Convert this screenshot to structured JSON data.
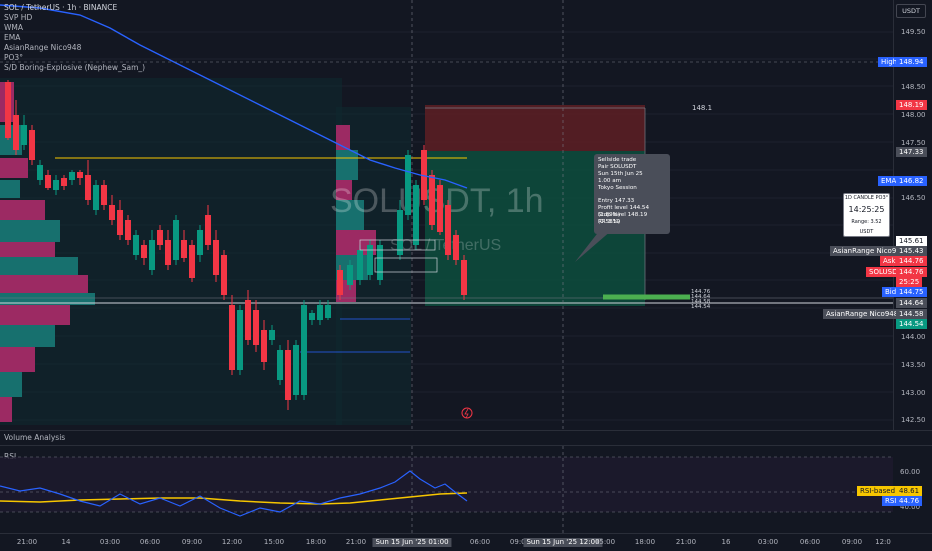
{
  "header": {
    "symbol_line": "SOL / TetherUS · 1h · BINANCE",
    "indicators": [
      "SVP HD",
      "WMA",
      "EMA",
      "AsianRange Nico948",
      "PO3°",
      "S/D Boring-Explosive (Nephew_Sam_)"
    ],
    "currency_button": "USDT"
  },
  "watermark": {
    "main": "SOLUSDT, 1h",
    "sub": "SOL / TetherUS"
  },
  "trade_box": {
    "top_value": "148.1",
    "lines": [
      "Sellside trade",
      "Pair SOLUSDT",
      "Sun 15th Jun 25",
      "1.00 am",
      "Tokyo Session",
      "",
      "Entry 147.33",
      "Profit level 144.54 (1.89%)",
      "Stop level 148.19 (0.58%)",
      "RR 3.19"
    ]
  },
  "po3_box": {
    "title": "1D CANDLE PO3°",
    "timer": "14:25:25",
    "range": "Range: 3.52 USDT"
  },
  "price_axis": {
    "ticks": [
      "149.50",
      "149.00",
      "148.50",
      "148.00",
      "147.50",
      "147.00",
      "146.50",
      "146.00",
      "145.50",
      "145.00",
      "144.50",
      "144.00",
      "143.50",
      "143.00",
      "142.50"
    ],
    "high_label": "High",
    "high_value": "148.94",
    "labels": [
      {
        "text": "148.19",
        "color": "#f23645"
      },
      {
        "text": "147.33",
        "color": "#4a4e59"
      },
      {
        "text": "EMA",
        "color": "#2962ff"
      },
      {
        "text": "146.82",
        "color": "#2962ff"
      },
      {
        "text": "145.61",
        "color": "#ffffff"
      },
      {
        "text": "AsianRange Nico948:Up",
        "color": "#4a4e59"
      },
      {
        "text": "145.43",
        "color": "#4a4e59"
      },
      {
        "text": "Ask",
        "color": "#f23645"
      },
      {
        "text": "144.76",
        "color": "#f23645"
      },
      {
        "text": "SOLUSDT",
        "color": "#f23645"
      },
      {
        "text": "144.76",
        "color": "#f23645"
      },
      {
        "text": "25:25",
        "color": "#f23645"
      },
      {
        "text": "Bid",
        "color": "#2962ff"
      },
      {
        "text": "144.75",
        "color": "#2962ff"
      },
      {
        "text": "144.64",
        "color": "#4a4e59"
      },
      {
        "text": "AsianRange Nico948:Down",
        "color": "#4a4e59"
      },
      {
        "text": "144.58",
        "color": "#4a4e59"
      },
      {
        "text": "144.54",
        "color": "#089981"
      }
    ],
    "small_levels": [
      "144.76",
      "144.64",
      "144.58",
      "144.54"
    ]
  },
  "volume_pane": {
    "title": "Volume Analysis"
  },
  "rsi_pane": {
    "title": "RSI",
    "ticks": [
      "60.00",
      "40.00"
    ],
    "ma_label": "RSI-based MA",
    "ma_value": "48.61",
    "rsi_label": "RSI",
    "rsi_value": "44.76"
  },
  "time_axis": {
    "ticks": [
      "21:00",
      "14",
      "03:00",
      "06:00",
      "09:00",
      "12:00",
      "15:00",
      "18:00",
      "21:00",
      "Sun 15 Jun '25   01:00",
      "06:00",
      "09:00",
      "Sun 15 Jun '25   12:00",
      "15:00",
      "18:00",
      "21:00",
      "16",
      "03:00",
      "06:00",
      "09:00",
      "12:0"
    ]
  },
  "colors": {
    "bg": "#131722",
    "up": "#089981",
    "down": "#f23645",
    "ema": "#2962ff",
    "rsi": "#2962ff",
    "rsi_ma": "#f7c600",
    "asian": "#f7c600"
  }
}
